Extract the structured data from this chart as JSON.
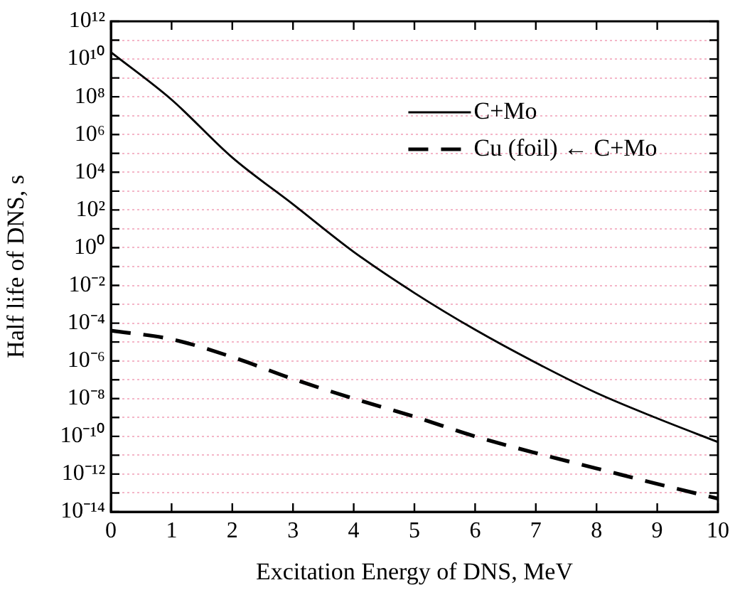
{
  "chart_data": {
    "type": "line",
    "xlabel": "Excitation Energy of DNS, MeV",
    "ylabel": "Half life of DNS, s",
    "x": [
      0,
      1,
      2,
      3,
      4,
      5,
      6,
      7,
      8,
      9,
      10
    ],
    "series": [
      {
        "name": "C+Mo",
        "color": "#000000",
        "line_style": "solid",
        "values": [
          23000000000.0,
          70000000.0,
          60000.0,
          200.0,
          0.6,
          0.004,
          4.5e-05,
          8e-07,
          2e-08,
          9e-10,
          5e-11
        ]
      },
      {
        "name": "Cu (foil) ← C+Mo",
        "color": "#000000",
        "line_style": "dashed",
        "values": [
          4e-05,
          1.4e-05,
          1.6e-06,
          1.1e-07,
          1e-08,
          1.1e-09,
          1e-10,
          1.3e-11,
          2e-12,
          3e-13,
          5e-14
        ]
      }
    ],
    "log": "y",
    "xlim": [
      0,
      10
    ],
    "xticks": [
      0,
      1,
      2,
      3,
      4,
      5,
      6,
      7,
      8,
      9,
      10
    ],
    "ylim": [
      1e-14,
      1000000000000.0
    ],
    "yticks": [
      {
        "value": 1e-14,
        "label": "10⁻¹⁴"
      },
      {
        "value": 1e-13,
        "label": null
      },
      {
        "value": 1e-12,
        "label": "10⁻¹²"
      },
      {
        "value": 1e-11,
        "label": null
      },
      {
        "value": 1e-10,
        "label": "10⁻¹⁰"
      },
      {
        "value": 1e-09,
        "label": null
      },
      {
        "value": 1e-08,
        "label": "10⁻⁸"
      },
      {
        "value": 1e-07,
        "label": null
      },
      {
        "value": 1e-06,
        "label": "10⁻⁶"
      },
      {
        "value": 1e-05,
        "label": null
      },
      {
        "value": 0.0001,
        "label": "10⁻⁴"
      },
      {
        "value": 0.001,
        "label": null
      },
      {
        "value": 0.01,
        "label": "10⁻²"
      },
      {
        "value": 0.1,
        "label": null
      },
      {
        "value": 1,
        "label": "10⁰"
      },
      {
        "value": 10,
        "label": null
      },
      {
        "value": 100,
        "label": "10²"
      },
      {
        "value": 1000.0,
        "label": null
      },
      {
        "value": 10000.0,
        "label": "10⁴"
      },
      {
        "value": 100000.0,
        "label": null
      },
      {
        "value": 1000000.0,
        "label": "10⁶"
      },
      {
        "value": 10000000.0,
        "label": null
      },
      {
        "value": 100000000.0,
        "label": "10⁸"
      },
      {
        "value": 1000000000.0,
        "label": null
      },
      {
        "value": 10000000000.0,
        "label": "10¹⁰"
      },
      {
        "value": 100000000000.0,
        "label": null
      },
      {
        "value": 1000000000000.0,
        "label": "10¹²"
      }
    ],
    "grid": "y",
    "legend": "top right",
    "marker": "none"
  }
}
